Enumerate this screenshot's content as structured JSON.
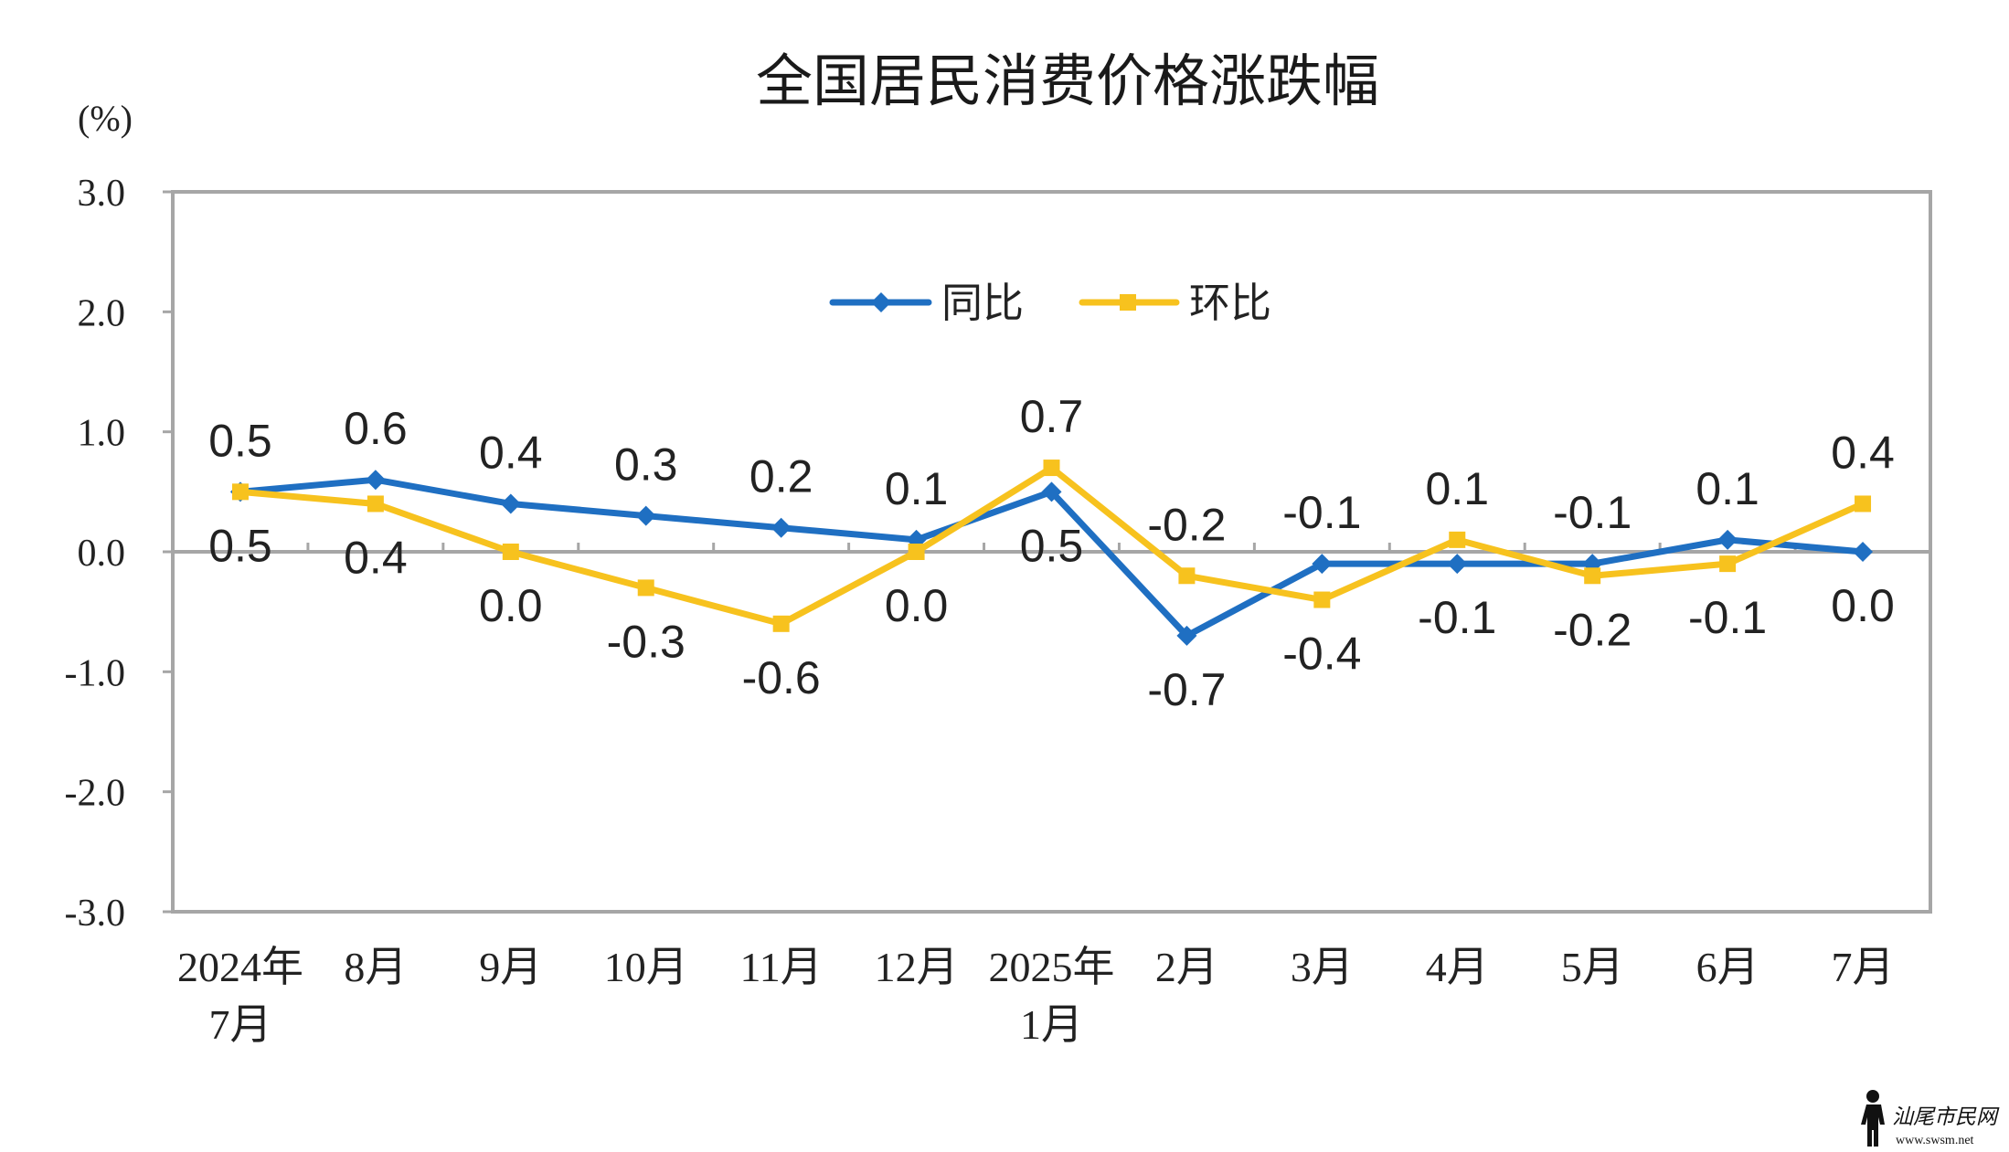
{
  "chart_data": {
    "type": "line",
    "title": "全国居民消费价格涨跌幅",
    "ylabel": "(%)",
    "ylim": [
      -3.0,
      3.0
    ],
    "yticks": [
      "3.0",
      "2.0",
      "1.0",
      "0.0",
      "-1.0",
      "-2.0",
      "-3.0"
    ],
    "grid": false,
    "legend": "top-center",
    "categories": [
      "2024年\n7月",
      "8月",
      "9月",
      "10月",
      "11月",
      "12月",
      "2025年\n1月",
      "2月",
      "3月",
      "4月",
      "5月",
      "6月",
      "7月"
    ],
    "series": [
      {
        "name": "同比",
        "color": "#1f6fc2",
        "marker": "diamond",
        "values": [
          0.5,
          0.6,
          0.4,
          0.3,
          0.2,
          0.1,
          0.5,
          -0.7,
          -0.1,
          -0.1,
          -0.1,
          0.1,
          0.0
        ]
      },
      {
        "name": "环比",
        "color": "#f7c21e",
        "marker": "square",
        "values": [
          0.5,
          0.4,
          0.0,
          -0.3,
          -0.6,
          0.0,
          0.7,
          -0.2,
          -0.4,
          0.1,
          -0.2,
          -0.1,
          0.4
        ]
      }
    ]
  },
  "watermark": {
    "site_name": "汕尾市民网",
    "url": "www.swsm.net",
    "icon": "person-silhouette-icon"
  },
  "colors": {
    "axis": "#a6a6a6",
    "text": "#222222",
    "background": "#ffffff"
  }
}
